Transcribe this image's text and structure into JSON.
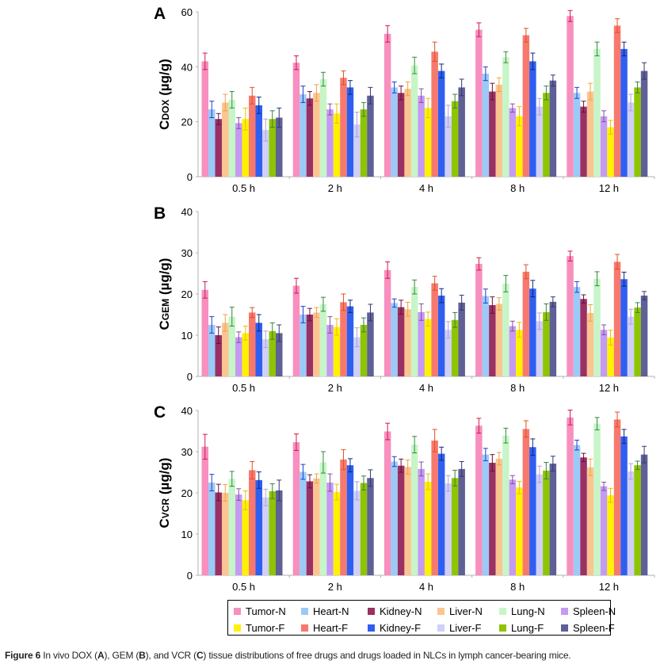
{
  "caption": {
    "figure_label": "Figure 6",
    "text_1": " In vivo DOX (",
    "A": "A",
    "text_2": "), GEM (",
    "B": "B",
    "text_3": "), and VCR (",
    "C": "C",
    "text_4": ") tissue distributions of free drugs and drugs loaded in NLCs in lymph cancer-bearing mice."
  },
  "legend": {
    "items": [
      {
        "label": "Tumor-N",
        "color": "#f78fbf"
      },
      {
        "label": "Heart-N",
        "color": "#9ccaf7"
      },
      {
        "label": "Kidney-N",
        "color": "#9a3063"
      },
      {
        "label": "Liver-N",
        "color": "#fbc592"
      },
      {
        "label": "Lung-N",
        "color": "#c8f5c8"
      },
      {
        "label": "Spleen-N",
        "color": "#c59af3"
      },
      {
        "label": "Tumor-F",
        "color": "#fff200"
      },
      {
        "label": "Heart-F",
        "color": "#f7796e"
      },
      {
        "label": "Kidney-F",
        "color": "#2f5ff0"
      },
      {
        "label": "Liver-F",
        "color": "#cfcff7"
      },
      {
        "label": "Lung-F",
        "color": "#8fc400"
      },
      {
        "label": "Spleen-F",
        "color": "#5f6096"
      }
    ],
    "placement": "bottom"
  },
  "chart_data": [
    {
      "type": "bar",
      "panel": "A",
      "ylabel_main": "C",
      "ylabel_sub": "DOX",
      "ylabel_unit": " (µg/g)",
      "ylim": [
        0,
        60
      ],
      "yticks": [
        0,
        20,
        40,
        60
      ],
      "categories": [
        "0.5 h",
        "2 h",
        "4 h",
        "8 h",
        "12 h"
      ],
      "series": [
        {
          "name": "Tumor-N",
          "values": [
            42,
            41.5,
            52,
            53.5,
            58.5
          ],
          "errors": [
            3,
            2.5,
            3,
            2.5,
            2
          ]
        },
        {
          "name": "Heart-N",
          "values": [
            24.5,
            30,
            32.5,
            37.5,
            30.5
          ],
          "errors": [
            3,
            3,
            2,
            2.5,
            2
          ]
        },
        {
          "name": "Kidney-N",
          "values": [
            21,
            28.5,
            30.5,
            31,
            25.5
          ],
          "errors": [
            2,
            2.5,
            2.5,
            3,
            2
          ]
        },
        {
          "name": "Liver-N",
          "values": [
            27,
            30.5,
            32,
            33.5,
            31
          ],
          "errors": [
            3,
            3,
            2.5,
            2.5,
            3
          ]
        },
        {
          "name": "Lung-N",
          "values": [
            28,
            35.5,
            40.5,
            43.5,
            46.5
          ],
          "errors": [
            3,
            2.5,
            3,
            2,
            2.5
          ]
        },
        {
          "name": "Spleen-N",
          "values": [
            19.5,
            24.5,
            29.5,
            25,
            22
          ],
          "errors": [
            2,
            2,
            2.5,
            1.5,
            2
          ]
        },
        {
          "name": "Tumor-F",
          "values": [
            21,
            23,
            25,
            22,
            18
          ],
          "errors": [
            4,
            3.5,
            3.5,
            3.5,
            2.5
          ]
        },
        {
          "name": "Heart-F",
          "values": [
            29.5,
            36,
            45.5,
            51.5,
            55
          ],
          "errors": [
            3,
            2.5,
            3.5,
            2.5,
            2.5
          ]
        },
        {
          "name": "Kidney-F",
          "values": [
            26,
            32.5,
            38.5,
            42,
            46.5
          ],
          "errors": [
            3,
            2.5,
            2.5,
            3,
            2.5
          ]
        },
        {
          "name": "Liver-F",
          "values": [
            17,
            19,
            22,
            25.5,
            27
          ],
          "errors": [
            4,
            4.5,
            4,
            3,
            3
          ]
        },
        {
          "name": "Lung-F",
          "values": [
            21,
            24.5,
            27.5,
            30.5,
            32.5
          ],
          "errors": [
            3,
            2.5,
            2.5,
            2.5,
            2
          ]
        },
        {
          "name": "Spleen-F",
          "values": [
            21.5,
            29.5,
            32.5,
            35,
            38.5
          ],
          "errors": [
            3.5,
            3,
            3,
            2,
            3
          ]
        }
      ]
    },
    {
      "type": "bar",
      "panel": "B",
      "ylabel_main": "C",
      "ylabel_sub": "GEM",
      "ylabel_unit": " (µg/g)",
      "ylim": [
        0,
        40
      ],
      "yticks": [
        0,
        10,
        20,
        30,
        40
      ],
      "categories": [
        "0.5 h",
        "2 h",
        "4 h",
        "8 h",
        "12 h"
      ],
      "series": [
        {
          "name": "Tumor-N",
          "values": [
            21,
            22,
            25.8,
            27.3,
            29.2
          ],
          "errors": [
            2,
            1.8,
            2,
            1.5,
            1.2
          ]
        },
        {
          "name": "Heart-N",
          "values": [
            12.5,
            15,
            17.8,
            19.5,
            21.7
          ],
          "errors": [
            2,
            2,
            1,
            1.7,
            1.3
          ]
        },
        {
          "name": "Kidney-N",
          "values": [
            10,
            15,
            16.8,
            17.3,
            18.8
          ],
          "errors": [
            2,
            1.5,
            1.7,
            2,
            1
          ]
        },
        {
          "name": "Liver-N",
          "values": [
            13,
            15.5,
            16.3,
            17.6,
            15.4
          ],
          "errors": [
            2,
            1.2,
            1.7,
            1.5,
            2
          ]
        },
        {
          "name": "Lung-N",
          "values": [
            14.5,
            17.5,
            21.7,
            22.5,
            23.7
          ],
          "errors": [
            2.3,
            1.7,
            1.7,
            2,
            1.7
          ]
        },
        {
          "name": "Spleen-N",
          "values": [
            9.5,
            12.5,
            15.6,
            12.2,
            11.3
          ],
          "errors": [
            1.3,
            2,
            2,
            1.2,
            1.2
          ]
        },
        {
          "name": "Tumor-F",
          "values": [
            10.5,
            12,
            13.9,
            11.3,
            9.4
          ],
          "errors": [
            1.7,
            2,
            1.7,
            1.8,
            1.8
          ]
        },
        {
          "name": "Heart-F",
          "values": [
            15.5,
            18,
            22.6,
            25.4,
            27.8
          ],
          "errors": [
            1.2,
            2,
            1.7,
            1.7,
            1.8
          ]
        },
        {
          "name": "Kidney-F",
          "values": [
            13,
            17,
            19.6,
            21.3,
            23.6
          ],
          "errors": [
            2,
            1.5,
            1.7,
            2,
            1.7
          ]
        },
        {
          "name": "Liver-F",
          "values": [
            9,
            9.5,
            11.3,
            13.4,
            14.5
          ],
          "errors": [
            2,
            2.3,
            2,
            2,
            1.8
          ]
        },
        {
          "name": "Lung-F",
          "values": [
            11,
            12.5,
            13.7,
            15.6,
            16.7
          ],
          "errors": [
            2,
            1.7,
            1.8,
            2,
            1.2
          ]
        },
        {
          "name": "Spleen-F",
          "values": [
            10.5,
            15.5,
            17.9,
            18.1,
            19.6
          ],
          "errors": [
            2,
            2,
            1.8,
            1.2,
            1
          ]
        }
      ]
    },
    {
      "type": "bar",
      "panel": "C",
      "ylabel_main": "C",
      "ylabel_sub": "VCR",
      "ylabel_unit": " (µg/g)",
      "ylim": [
        0,
        40
      ],
      "yticks": [
        0,
        10,
        20,
        30,
        40
      ],
      "categories": [
        "0.5 h",
        "2 h",
        "4 h",
        "8 h",
        "12 h"
      ],
      "series": [
        {
          "name": "Tumor-N",
          "values": [
            31.2,
            32.3,
            34.9,
            36.3,
            38.3
          ],
          "errors": [
            3,
            2,
            2,
            1.8,
            1.8
          ]
        },
        {
          "name": "Heart-N",
          "values": [
            22.5,
            25.1,
            27.6,
            29.3,
            31.6
          ],
          "errors": [
            2,
            1.8,
            1.2,
            1.5,
            1.2
          ]
        },
        {
          "name": "Kidney-N",
          "values": [
            20.1,
            22.8,
            26.6,
            27.3,
            28.6
          ],
          "errors": [
            2,
            1.6,
            1.6,
            2,
            1
          ]
        },
        {
          "name": "Liver-N",
          "values": [
            20,
            23.5,
            26.3,
            28.3,
            26.2
          ],
          "errors": [
            2,
            1.1,
            1.7,
            1.5,
            2
          ]
        },
        {
          "name": "Lung-N",
          "values": [
            23.4,
            27.4,
            31.7,
            33.9,
            36.8
          ],
          "errors": [
            1.8,
            2.6,
            2,
            1.8,
            1.5
          ]
        },
        {
          "name": "Spleen-N",
          "values": [
            19.6,
            22.5,
            25.8,
            23.2,
            21.6
          ],
          "errors": [
            1.4,
            2.1,
            1.7,
            1,
            1
          ]
        },
        {
          "name": "Tumor-F",
          "values": [
            18.2,
            20.2,
            22.7,
            21.3,
            19.4
          ],
          "errors": [
            2.3,
            1.9,
            1.9,
            1.5,
            1.7
          ]
        },
        {
          "name": "Heart-F",
          "values": [
            25.5,
            28.1,
            32.7,
            35.5,
            37.8
          ],
          "errors": [
            2.1,
            2.4,
            2.7,
            2,
            1.8
          ]
        },
        {
          "name": "Kidney-F",
          "values": [
            23.1,
            26.7,
            29.5,
            31.1,
            33.7
          ],
          "errors": [
            2,
            1.6,
            1.6,
            2,
            1.7
          ]
        },
        {
          "name": "Liver-F",
          "values": [
            18.9,
            20.5,
            22.3,
            24.5,
            25.2
          ],
          "errors": [
            2,
            2.2,
            1.9,
            2,
            1.9
          ]
        },
        {
          "name": "Lung-F",
          "values": [
            20.4,
            22.4,
            23.6,
            25.4,
            26.7
          ],
          "errors": [
            1.8,
            1.7,
            1.9,
            2,
            1
          ]
        },
        {
          "name": "Spleen-F",
          "values": [
            20.6,
            23.6,
            25.8,
            27.1,
            29.3
          ],
          "errors": [
            2.5,
            2,
            1.8,
            1.8,
            2
          ]
        }
      ]
    }
  ]
}
